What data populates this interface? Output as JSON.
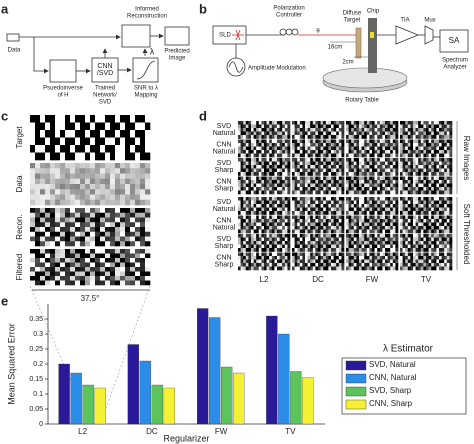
{
  "panel_labels": [
    "a",
    "b",
    "c",
    "d",
    "e"
  ],
  "diagram_a": {
    "data": "Data",
    "informed": [
      "Informed",
      "Reconstruction"
    ],
    "predicted": [
      "Predicted",
      "Image"
    ],
    "pseudo": [
      "Psuedoinverse",
      "of H"
    ],
    "cnn": [
      "CNN",
      "/SVD"
    ],
    "trained": [
      "Trained",
      "Network/",
      "SVD"
    ],
    "snr": [
      "SNR to λ",
      "Mapping"
    ],
    "lambda": "λ"
  },
  "diagram_b": {
    "sld": "SLD",
    "polarization": [
      "Polarization",
      "Controller"
    ],
    "amplitude": "Amplitude Modulation",
    "theta": "θ",
    "target": [
      "Diffuse",
      "Target"
    ],
    "chip": "Chip",
    "tia": "TIA",
    "mux": "Mux",
    "sa": "SA",
    "analyzer": [
      "Spectrum",
      "Analyzer"
    ],
    "d16": "16cm",
    "d2": "2cm",
    "rotary": "Rotary Table"
  },
  "panel_c": {
    "rows": [
      "Target",
      "Data",
      "Recon.",
      "Filtered"
    ],
    "scale": "37.5°"
  },
  "panel_d": {
    "raw_rows": [
      [
        "SVD",
        "Natural"
      ],
      [
        "CNN",
        "Natural"
      ],
      [
        "SVD",
        "Sharp"
      ],
      [
        "CNN",
        "Sharp"
      ]
    ],
    "soft_rows": [
      [
        "SVD",
        "Natural"
      ],
      [
        "CNN",
        "Natural"
      ],
      [
        "SVD",
        "Sharp"
      ],
      [
        "CNN",
        "Sharp"
      ]
    ],
    "columns": [
      "L2",
      "DC",
      "FW",
      "TV"
    ],
    "raw": "Raw Images",
    "soft": "Soft Thresholded"
  },
  "chart_data": {
    "type": "bar",
    "categories": [
      "L2",
      "DC",
      "FW",
      "TV"
    ],
    "series": [
      {
        "name": "SVD, Natural",
        "color": "#2a1a9a",
        "values": [
          0.2,
          0.265,
          0.385,
          0.36
        ]
      },
      {
        "name": "CNN, Natural",
        "color": "#2b8de8",
        "values": [
          0.17,
          0.21,
          0.355,
          0.3
        ]
      },
      {
        "name": "SVD, Sharp",
        "color": "#5cc45c",
        "values": [
          0.13,
          0.13,
          0.19,
          0.175
        ]
      },
      {
        "name": "CNN, Sharp",
        "color": "#f5f033",
        "values": [
          0.12,
          0.12,
          0.17,
          0.155
        ]
      }
    ],
    "ylim": [
      0,
      0.4
    ],
    "yticks": [
      0,
      0.05,
      0.1,
      0.15,
      0.2,
      0.25,
      0.3,
      0.35
    ],
    "xlabel": "Regularizer",
    "ylabel": "Mean Squared Error",
    "legend_title": "λ Estimator"
  }
}
